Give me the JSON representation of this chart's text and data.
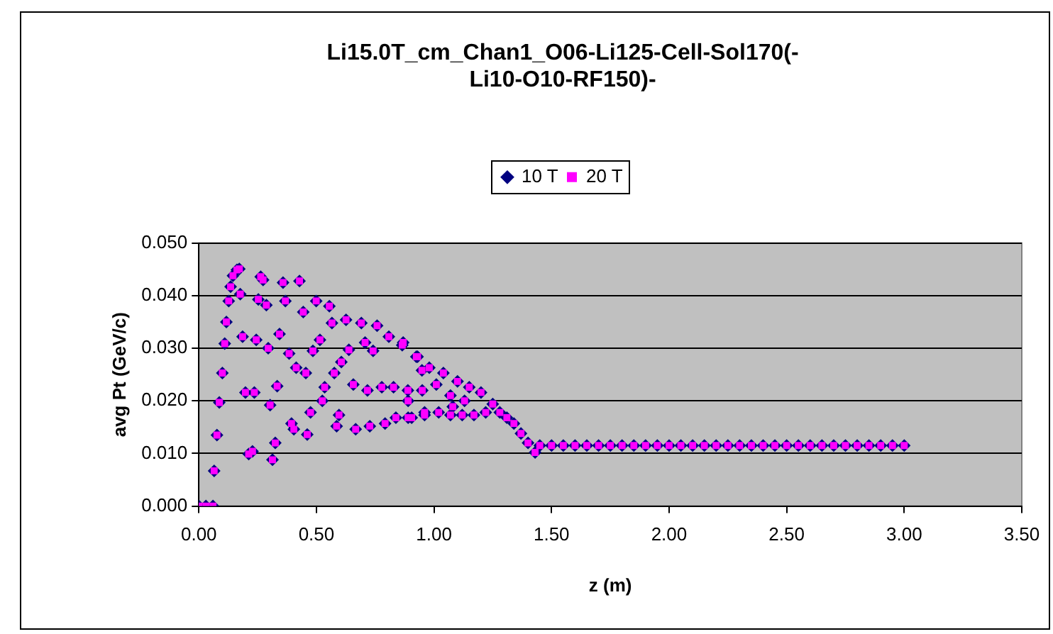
{
  "chart_data": {
    "type": "scatter",
    "title": "Li15.0T_cm_Chan1_O06-Li125-Cell-Sol170(-Li10-O10-RF150)-",
    "xlabel": "z (m)",
    "ylabel": "avg Pt (GeV/c)",
    "xlim": [
      0,
      3.5
    ],
    "xticks": [
      {
        "value": 0,
        "label": "0.00"
      },
      {
        "value": 0.5,
        "label": "0.50"
      },
      {
        "value": 1,
        "label": "1.00"
      },
      {
        "value": 1.5,
        "label": "1.50"
      },
      {
        "value": 2,
        "label": "2.00"
      },
      {
        "value": 2.5,
        "label": "2.50"
      },
      {
        "value": 3,
        "label": "3.00"
      },
      {
        "value": 3.5,
        "label": "3.50"
      }
    ],
    "ylim": [
      0,
      0.05
    ],
    "yticks": [
      {
        "value": 0,
        "label": "0.000"
      },
      {
        "value": 0.01,
        "label": "0.010"
      },
      {
        "value": 0.02,
        "label": "0.020"
      },
      {
        "value": 0.03,
        "label": "0.030"
      },
      {
        "value": 0.04,
        "label": "0.040"
      },
      {
        "value": 0.05,
        "label": "0.050"
      }
    ],
    "grid": "y",
    "legend": "top",
    "series": [
      {
        "name": "10 T",
        "color": "#000080",
        "marker": "diamond",
        "x": [
          0,
          0.03,
          0.06,
          0.065,
          0.077,
          0.087,
          0.1,
          0.11,
          0.117,
          0.127,
          0.135,
          0.145,
          0.162,
          0.172,
          0.176,
          0.186,
          0.198,
          0.212,
          0.228,
          0.236,
          0.244,
          0.253,
          0.263,
          0.273,
          0.287,
          0.295,
          0.303,
          0.313,
          0.325,
          0.333,
          0.343,
          0.358,
          0.368,
          0.384,
          0.394,
          0.404,
          0.414,
          0.428,
          0.444,
          0.455,
          0.461,
          0.475,
          0.485,
          0.499,
          0.515,
          0.525,
          0.535,
          0.555,
          0.566,
          0.576,
          0.586,
          0.596,
          0.606,
          0.626,
          0.638,
          0.657,
          0.667,
          0.691,
          0.707,
          0.717,
          0.727,
          0.741,
          0.758,
          0.778,
          0.792,
          0.808,
          0.828,
          0.838,
          0.865,
          0.889,
          0.905,
          0.925,
          0.949,
          0.96,
          0.869,
          0.93,
          0.98,
          1.04,
          1.1,
          1.15,
          1.2,
          0.89,
          0.95,
          1.01,
          1.07,
          1.13,
          0.89,
          0.96,
          1.02,
          1.08,
          1.07,
          1.12,
          1.17,
          1.22,
          1.25,
          1.28,
          1.31,
          1.34,
          1.37,
          1.4,
          1.43,
          1.45,
          1.5,
          1.55,
          1.6,
          1.65,
          1.7,
          1.75,
          1.8,
          1.85,
          1.9,
          1.95,
          2,
          2.05,
          2.1,
          2.15,
          2.2,
          2.25,
          2.3,
          2.35,
          2.4,
          2.45,
          2.5,
          2.55,
          2.6,
          2.65,
          2.7,
          2.75,
          2.8,
          2.85,
          2.9,
          2.95,
          3
        ],
        "values": [
          0,
          0,
          0,
          0.0067,
          0.0135,
          0.0197,
          0.0253,
          0.0309,
          0.035,
          0.039,
          0.0417,
          0.0438,
          0.0449,
          0.0451,
          0.0403,
          0.0322,
          0.0216,
          0.0099,
          0.0104,
          0.0216,
          0.0316,
          0.0393,
          0.0436,
          0.043,
          0.0382,
          0.03,
          0.0192,
          0.0088,
          0.012,
          0.0228,
          0.0327,
          0.0425,
          0.039,
          0.029,
          0.0157,
          0.0146,
          0.0263,
          0.0428,
          0.0369,
          0.0253,
          0.0136,
          0.0178,
          0.0295,
          0.039,
          0.0316,
          0.02,
          0.0226,
          0.038,
          0.0348,
          0.0253,
          0.0152,
          0.0173,
          0.0274,
          0.0354,
          0.0297,
          0.0231,
          0.0146,
          0.0348,
          0.0311,
          0.022,
          0.0152,
          0.0295,
          0.0343,
          0.0226,
          0.0157,
          0.0322,
          0.0226,
          0.0168,
          0.0306,
          0.022,
          0.0168,
          0.0284,
          0.0258,
          0.0178,
          0.0311,
          0.0284,
          0.0263,
          0.0253,
          0.0237,
          0.0226,
          0.0216,
          0.02,
          0.022,
          0.0231,
          0.021,
          0.02,
          0.0168,
          0.0173,
          0.0178,
          0.0189,
          0.0173,
          0.0173,
          0.0173,
          0.0178,
          0.0194,
          0.0178,
          0.0168,
          0.0157,
          0.0138,
          0.012,
          0.0102,
          0.0115,
          0.0115,
          0.0115,
          0.0115,
          0.0115,
          0.0115,
          0.0115,
          0.0115,
          0.0115,
          0.0115,
          0.0115,
          0.0115,
          0.0115,
          0.0115,
          0.0115,
          0.0115,
          0.0115,
          0.0115,
          0.0115,
          0.0115,
          0.0115,
          0.0115,
          0.0115,
          0.0115,
          0.0115,
          0.0115,
          0.0115,
          0.0115,
          0.0115,
          0.0115,
          0.0115,
          0.0115
        ]
      },
      {
        "name": "20 T",
        "color": "#ff00ff",
        "marker": "square",
        "x": [
          0,
          0.03,
          0.06,
          0.065,
          0.077,
          0.087,
          0.1,
          0.11,
          0.117,
          0.127,
          0.135,
          0.145,
          0.162,
          0.172,
          0.176,
          0.186,
          0.198,
          0.212,
          0.228,
          0.236,
          0.244,
          0.253,
          0.263,
          0.273,
          0.287,
          0.295,
          0.303,
          0.313,
          0.325,
          0.333,
          0.343,
          0.358,
          0.368,
          0.384,
          0.394,
          0.404,
          0.414,
          0.428,
          0.444,
          0.455,
          0.461,
          0.475,
          0.485,
          0.499,
          0.515,
          0.525,
          0.535,
          0.555,
          0.566,
          0.576,
          0.586,
          0.596,
          0.606,
          0.626,
          0.638,
          0.657,
          0.667,
          0.691,
          0.707,
          0.717,
          0.727,
          0.741,
          0.758,
          0.778,
          0.792,
          0.808,
          0.828,
          0.838,
          0.865,
          0.889,
          0.905,
          0.925,
          0.949,
          0.96,
          0.869,
          0.93,
          0.98,
          1.04,
          1.1,
          1.15,
          1.2,
          0.89,
          0.95,
          1.01,
          1.07,
          1.13,
          0.89,
          0.96,
          1.02,
          1.08,
          1.07,
          1.12,
          1.17,
          1.22,
          1.25,
          1.28,
          1.31,
          1.34,
          1.37,
          1.4,
          1.43,
          1.45,
          1.5,
          1.55,
          1.6,
          1.65,
          1.7,
          1.75,
          1.8,
          1.85,
          1.9,
          1.95,
          2,
          2.05,
          2.1,
          2.15,
          2.2,
          2.25,
          2.3,
          2.35,
          2.4,
          2.45,
          2.5,
          2.55,
          2.6,
          2.65,
          2.7,
          2.75,
          2.8,
          2.85,
          2.9,
          2.95,
          3
        ],
        "values": [
          0,
          0,
          0,
          0.0067,
          0.0135,
          0.0197,
          0.0253,
          0.0309,
          0.035,
          0.039,
          0.0417,
          0.0438,
          0.0449,
          0.0451,
          0.0403,
          0.0322,
          0.0216,
          0.0099,
          0.0104,
          0.0216,
          0.0316,
          0.0393,
          0.0436,
          0.043,
          0.0382,
          0.03,
          0.0192,
          0.0088,
          0.012,
          0.0228,
          0.0327,
          0.0425,
          0.039,
          0.029,
          0.0157,
          0.0146,
          0.0263,
          0.0428,
          0.0369,
          0.0253,
          0.0136,
          0.0178,
          0.0295,
          0.039,
          0.0316,
          0.02,
          0.0226,
          0.038,
          0.0348,
          0.0253,
          0.0152,
          0.0173,
          0.0274,
          0.0354,
          0.0297,
          0.0231,
          0.0146,
          0.0348,
          0.0311,
          0.022,
          0.0152,
          0.0295,
          0.0343,
          0.0226,
          0.0157,
          0.0322,
          0.0226,
          0.0168,
          0.0306,
          0.022,
          0.0168,
          0.0284,
          0.0258,
          0.0178,
          0.0311,
          0.0284,
          0.0263,
          0.0253,
          0.0237,
          0.0226,
          0.0216,
          0.02,
          0.022,
          0.0231,
          0.021,
          0.02,
          0.0168,
          0.0173,
          0.0178,
          0.0189,
          0.0173,
          0.0173,
          0.0173,
          0.0178,
          0.0194,
          0.0178,
          0.0168,
          0.0157,
          0.0138,
          0.012,
          0.0102,
          0.0115,
          0.0115,
          0.0115,
          0.0115,
          0.0115,
          0.0115,
          0.0115,
          0.0115,
          0.0115,
          0.0115,
          0.0115,
          0.0115,
          0.0115,
          0.0115,
          0.0115,
          0.0115,
          0.0115,
          0.0115,
          0.0115,
          0.0115,
          0.0115,
          0.0115,
          0.0115,
          0.0115,
          0.0115,
          0.0115,
          0.0115,
          0.0115,
          0.0115,
          0.0115,
          0.0115,
          0.0115
        ]
      }
    ]
  }
}
